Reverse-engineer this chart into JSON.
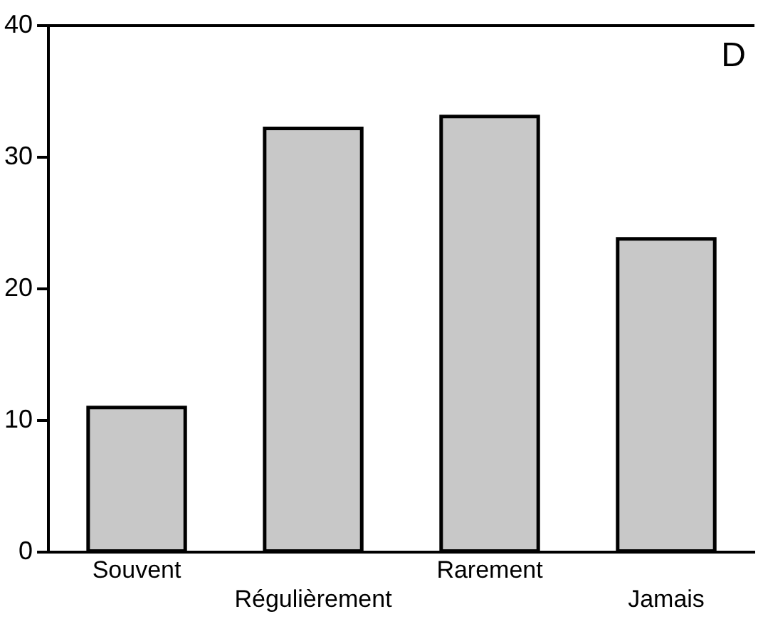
{
  "chart_data": {
    "type": "bar",
    "categories": [
      "Souvent",
      "Régulièrement",
      "Rarement",
      "Jamais"
    ],
    "values": [
      11.0,
      32.2,
      33.1,
      23.8
    ],
    "color": "#c8c8c8",
    "ylim": [
      0,
      40
    ],
    "yticks": [
      0,
      10,
      20,
      30,
      40
    ],
    "grid": false,
    "legend": false,
    "annotations": [
      "D"
    ]
  }
}
